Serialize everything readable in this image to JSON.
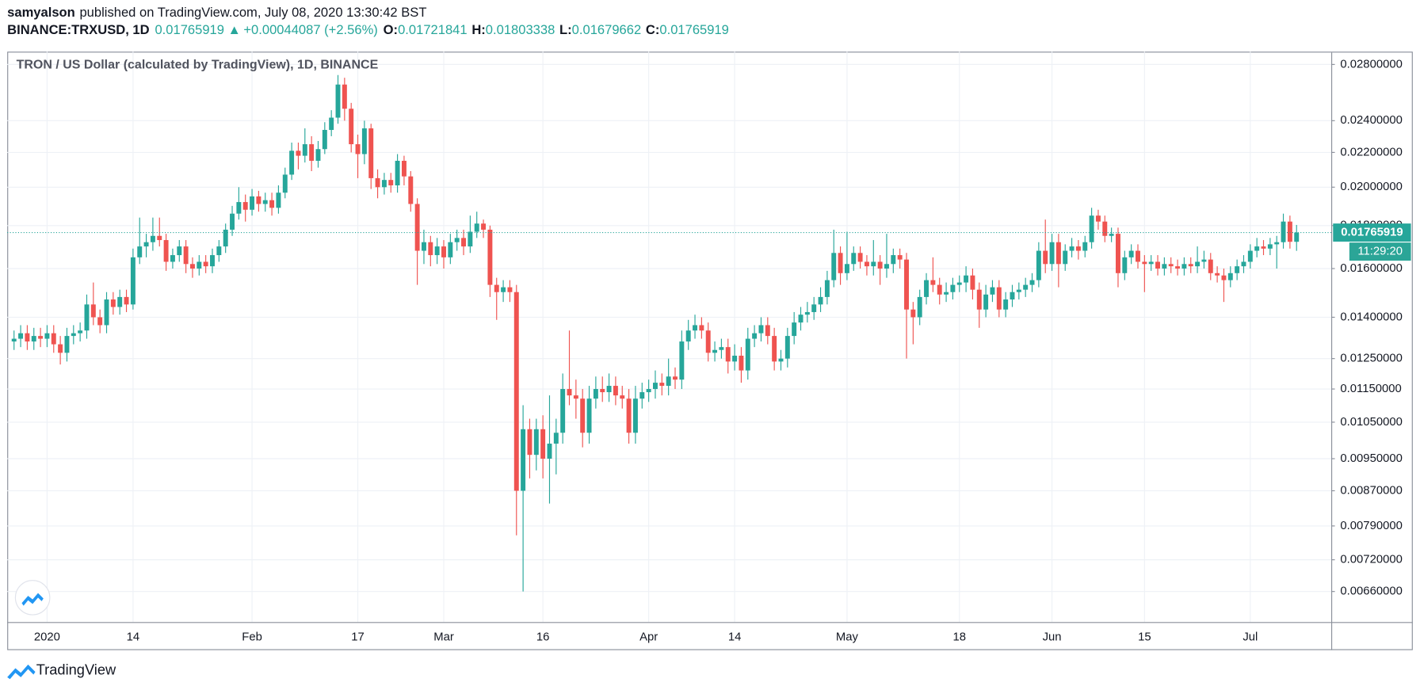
{
  "header": {
    "author": "samyalson",
    "published": "published on TradingView.com, July 08, 2020 13:30:42 BST",
    "symbol": "BINANCE:TRXUSD, 1D",
    "change": "+0.00044087 (+2.56%)",
    "ohlc_labels": [
      "O:",
      "H:",
      "L:",
      "C:"
    ],
    "brand": "TradingView"
  },
  "chart_data": {
    "type": "candlestick",
    "title": "TRON / US Dollar (calculated by TradingView), 1D, BINANCE",
    "countdown": "11:29:20",
    "log_scale": true,
    "grid": true,
    "up_color": "#26a69a",
    "down_color": "#ef5350",
    "categories": [
      null,
      null,
      null,
      null,
      null,
      "2020",
      null,
      null,
      null,
      null,
      null,
      null,
      null,
      null,
      null,
      null,
      null,
      null,
      "14",
      null,
      null,
      null,
      null,
      null,
      null,
      null,
      null,
      null,
      null,
      null,
      null,
      null,
      null,
      null,
      null,
      null,
      "Feb",
      null,
      null,
      null,
      null,
      null,
      null,
      null,
      null,
      null,
      null,
      null,
      null,
      null,
      null,
      null,
      "17",
      null,
      null,
      null,
      null,
      null,
      null,
      null,
      null,
      null,
      null,
      null,
      null,
      "Mar",
      null,
      null,
      null,
      null,
      null,
      null,
      null,
      null,
      null,
      null,
      null,
      null,
      null,
      null,
      "16",
      null,
      null,
      null,
      null,
      null,
      null,
      null,
      null,
      null,
      null,
      null,
      null,
      null,
      null,
      null,
      "Apr",
      null,
      null,
      null,
      null,
      null,
      null,
      null,
      null,
      null,
      null,
      null,
      null,
      "14",
      null,
      null,
      null,
      null,
      null,
      null,
      null,
      null,
      null,
      null,
      null,
      null,
      null,
      null,
      null,
      null,
      "May",
      null,
      null,
      null,
      null,
      null,
      null,
      null,
      null,
      null,
      null,
      null,
      null,
      null,
      null,
      null,
      null,
      "18",
      null,
      null,
      null,
      null,
      null,
      null,
      null,
      null,
      null,
      null,
      null,
      null,
      null,
      "Jun",
      null,
      null,
      null,
      null,
      null,
      null,
      null,
      null,
      null,
      null,
      null,
      null,
      null,
      "15",
      null,
      null,
      null,
      null,
      null,
      null,
      null,
      null,
      null,
      null,
      null,
      null,
      null,
      null,
      null,
      "Jul",
      null,
      null,
      null,
      null,
      null,
      null,
      null
    ],
    "open": [
      0.0131,
      0.0132,
      0.0134,
      0.0131,
      0.0133,
      0.0132,
      0.0134,
      0.013,
      0.0127,
      0.0133,
      0.0134,
      0.0135,
      0.0145,
      0.014,
      0.0137,
      0.0147,
      0.0144,
      0.0148,
      0.0145,
      0.0165,
      0.017,
      0.0172,
      0.0175,
      0.0173,
      0.0163,
      0.0166,
      0.017,
      0.0162,
      0.016,
      0.0163,
      0.0161,
      0.0166,
      0.017,
      0.0178,
      0.0186,
      0.0192,
      0.0188,
      0.0195,
      0.0191,
      0.0193,
      0.0189,
      0.0197,
      0.0207,
      0.0221,
      0.0218,
      0.0225,
      0.0215,
      0.0222,
      0.0234,
      0.0242,
      0.0265,
      0.0248,
      0.0225,
      0.0219,
      0.0235,
      0.0205,
      0.02,
      0.0204,
      0.0201,
      0.0215,
      0.0206,
      0.0191,
      0.0168,
      0.0172,
      0.0166,
      0.017,
      0.0165,
      0.0172,
      0.0174,
      0.017,
      0.0177,
      0.0181,
      0.0178,
      0.0153,
      0.015,
      0.0152,
      0.015,
      0.0087,
      0.0103,
      0.0096,
      0.0103,
      0.0095,
      0.0099,
      0.0102,
      0.0115,
      0.0113,
      0.0112,
      0.0102,
      0.0112,
      0.0115,
      0.0114,
      0.0116,
      0.0113,
      0.0112,
      0.0102,
      0.0112,
      0.0114,
      0.0115,
      0.0117,
      0.0116,
      0.0119,
      0.0118,
      0.0131,
      0.0135,
      0.0137,
      0.0135,
      0.0127,
      0.0128,
      0.0129,
      0.0124,
      0.0126,
      0.0121,
      0.0132,
      0.0134,
      0.0137,
      0.0133,
      0.0124,
      0.0125,
      0.0133,
      0.0138,
      0.0141,
      0.0142,
      0.0145,
      0.0148,
      0.0155,
      0.0167,
      0.0158,
      0.0162,
      0.0167,
      0.0163,
      0.0161,
      0.0163,
      0.016,
      0.0162,
      0.0166,
      0.0164,
      0.0143,
      0.014,
      0.0148,
      0.0155,
      0.0153,
      0.0149,
      0.015,
      0.0153,
      0.0154,
      0.0157,
      0.0151,
      0.0143,
      0.0149,
      0.0152,
      0.0143,
      0.0147,
      0.015,
      0.0151,
      0.0153,
      0.0155,
      0.0168,
      0.0162,
      0.0172,
      0.0162,
      0.0168,
      0.017,
      0.0168,
      0.0172,
      0.0185,
      0.0182,
      0.0175,
      0.0176,
      0.0158,
      0.0165,
      0.0168,
      0.0163,
      0.0162,
      0.0163,
      0.016,
      0.0162,
      0.0161,
      0.016,
      0.0162,
      0.0161,
      0.0163,
      0.0164,
      0.0158,
      0.0157,
      0.0155,
      0.0158,
      0.0161,
      0.0163,
      0.0168,
      0.017,
      0.0169,
      0.0171,
      0.0172,
      0.0182,
      0.01721841
    ],
    "high": [
      0.0135,
      0.0137,
      0.0137,
      0.0136,
      0.0136,
      0.0137,
      0.0137,
      0.0133,
      0.0136,
      0.0137,
      0.0138,
      0.0149,
      0.0154,
      0.0143,
      0.015,
      0.015,
      0.0151,
      0.0151,
      0.0169,
      0.0184,
      0.0176,
      0.0184,
      0.0184,
      0.0176,
      0.0169,
      0.0173,
      0.0173,
      0.0165,
      0.0166,
      0.0166,
      0.0169,
      0.0173,
      0.0181,
      0.019,
      0.02,
      0.0196,
      0.0199,
      0.0198,
      0.0197,
      0.0197,
      0.0201,
      0.0211,
      0.0226,
      0.0226,
      0.0235,
      0.023,
      0.0227,
      0.0239,
      0.0247,
      0.0272,
      0.027,
      0.0252,
      0.0231,
      0.024,
      0.0238,
      0.021,
      0.0208,
      0.0208,
      0.0219,
      0.0218,
      0.0209,
      0.0194,
      0.0178,
      0.0175,
      0.0174,
      0.0173,
      0.0176,
      0.0178,
      0.0178,
      0.0185,
      0.0187,
      0.0183,
      0.018,
      0.0156,
      0.0155,
      0.0155,
      0.0153,
      0.011,
      0.0106,
      0.0106,
      0.0107,
      0.0113,
      0.0106,
      0.012,
      0.0135,
      0.0118,
      0.0115,
      0.0116,
      0.0119,
      0.0119,
      0.012,
      0.0119,
      0.0116,
      0.0115,
      0.0116,
      0.0117,
      0.0118,
      0.0121,
      0.012,
      0.0125,
      0.0122,
      0.0135,
      0.0139,
      0.0141,
      0.014,
      0.0138,
      0.0131,
      0.0132,
      0.0132,
      0.013,
      0.0129,
      0.0136,
      0.0137,
      0.014,
      0.014,
      0.0136,
      0.0128,
      0.0136,
      0.0142,
      0.0144,
      0.0146,
      0.0148,
      0.0152,
      0.0159,
      0.0178,
      0.017,
      0.0177,
      0.017,
      0.017,
      0.0166,
      0.0173,
      0.0166,
      0.0176,
      0.0169,
      0.0169,
      0.0167,
      0.0146,
      0.0151,
      0.0158,
      0.0165,
      0.0156,
      0.0154,
      0.0156,
      0.0157,
      0.0161,
      0.016,
      0.0154,
      0.0153,
      0.0155,
      0.0155,
      0.015,
      0.0153,
      0.0154,
      0.0156,
      0.0158,
      0.0172,
      0.0183,
      0.0176,
      0.0176,
      0.0171,
      0.0174,
      0.0173,
      0.0175,
      0.0189,
      0.0188,
      0.0185,
      0.0179,
      0.0179,
      0.0168,
      0.0171,
      0.0171,
      0.0166,
      0.0166,
      0.0166,
      0.0165,
      0.0165,
      0.0164,
      0.0165,
      0.0165,
      0.017,
      0.0168,
      0.0167,
      0.0161,
      0.016,
      0.0161,
      0.0164,
      0.0166,
      0.0171,
      0.0174,
      0.0173,
      0.0174,
      0.0175,
      0.0186,
      0.0185,
      0.01803338
    ],
    "low": [
      0.0128,
      0.0129,
      0.0128,
      0.0128,
      0.0129,
      0.0129,
      0.0127,
      0.0123,
      0.0124,
      0.013,
      0.0131,
      0.0132,
      0.0137,
      0.0134,
      0.0134,
      0.0141,
      0.0141,
      0.0142,
      0.0143,
      0.0162,
      0.0165,
      0.0168,
      0.017,
      0.0159,
      0.016,
      0.0163,
      0.0158,
      0.0156,
      0.0157,
      0.0158,
      0.0158,
      0.0163,
      0.0167,
      0.0175,
      0.0183,
      0.0182,
      0.0185,
      0.0187,
      0.0187,
      0.0185,
      0.0186,
      0.0194,
      0.0204,
      0.021,
      0.0214,
      0.0209,
      0.0211,
      0.0219,
      0.023,
      0.0238,
      0.024,
      0.022,
      0.0205,
      0.0213,
      0.0199,
      0.0194,
      0.0196,
      0.0197,
      0.0197,
      0.0201,
      0.0187,
      0.0153,
      0.0162,
      0.0161,
      0.0162,
      0.016,
      0.0162,
      0.0168,
      0.0166,
      0.0167,
      0.0174,
      0.0174,
      0.0148,
      0.0139,
      0.0146,
      0.0146,
      0.0077,
      0.0066,
      0.009,
      0.0092,
      0.009,
      0.0084,
      0.0091,
      0.0099,
      0.011,
      0.0106,
      0.0098,
      0.0099,
      0.0109,
      0.0111,
      0.0111,
      0.011,
      0.0109,
      0.0099,
      0.0099,
      0.0109,
      0.0111,
      0.0112,
      0.0113,
      0.0113,
      0.0115,
      0.0115,
      0.0128,
      0.0132,
      0.0132,
      0.0124,
      0.0124,
      0.0125,
      0.012,
      0.0121,
      0.0117,
      0.0118,
      0.0129,
      0.0131,
      0.013,
      0.0121,
      0.0121,
      0.0122,
      0.013,
      0.0135,
      0.0138,
      0.0139,
      0.0142,
      0.0145,
      0.0152,
      0.0153,
      0.0155,
      0.0159,
      0.016,
      0.0157,
      0.0157,
      0.0153,
      0.0156,
      0.0158,
      0.016,
      0.0125,
      0.013,
      0.0137,
      0.0145,
      0.015,
      0.0145,
      0.0146,
      0.0147,
      0.015,
      0.015,
      0.0147,
      0.0136,
      0.014,
      0.0146,
      0.014,
      0.014,
      0.0144,
      0.0147,
      0.0148,
      0.015,
      0.0152,
      0.0158,
      0.0159,
      0.0152,
      0.0159,
      0.0165,
      0.0164,
      0.0165,
      0.0169,
      0.0178,
      0.0172,
      0.0172,
      0.0152,
      0.0155,
      0.0162,
      0.016,
      0.015,
      0.0159,
      0.0157,
      0.0157,
      0.0158,
      0.0157,
      0.0157,
      0.0158,
      0.0158,
      0.016,
      0.0155,
      0.0154,
      0.0146,
      0.0152,
      0.0155,
      0.0158,
      0.016,
      0.0165,
      0.0166,
      0.0166,
      0.016,
      0.0169,
      0.0169,
      0.01679662
    ],
    "close": [
      0.0132,
      0.0134,
      0.0131,
      0.0133,
      0.0132,
      0.0134,
      0.013,
      0.0127,
      0.0133,
      0.0134,
      0.0135,
      0.0145,
      0.014,
      0.0137,
      0.0147,
      0.0144,
      0.0148,
      0.0145,
      0.0165,
      0.017,
      0.0172,
      0.0175,
      0.0173,
      0.0163,
      0.0166,
      0.017,
      0.0162,
      0.016,
      0.0163,
      0.0161,
      0.0166,
      0.017,
      0.0178,
      0.0186,
      0.0192,
      0.0188,
      0.0195,
      0.0191,
      0.0193,
      0.0189,
      0.0197,
      0.0207,
      0.0221,
      0.0218,
      0.0225,
      0.0215,
      0.0222,
      0.0234,
      0.0242,
      0.0265,
      0.0248,
      0.0225,
      0.0219,
      0.0235,
      0.0205,
      0.02,
      0.0204,
      0.0201,
      0.0215,
      0.0206,
      0.0191,
      0.0168,
      0.0172,
      0.0166,
      0.017,
      0.0165,
      0.0172,
      0.0174,
      0.017,
      0.0177,
      0.0181,
      0.0178,
      0.0153,
      0.015,
      0.0152,
      0.015,
      0.0087,
      0.0103,
      0.0096,
      0.0103,
      0.0095,
      0.0099,
      0.0102,
      0.0115,
      0.0113,
      0.0112,
      0.0102,
      0.0112,
      0.0115,
      0.0114,
      0.0116,
      0.0113,
      0.0112,
      0.0102,
      0.0112,
      0.0114,
      0.0115,
      0.0117,
      0.0116,
      0.0119,
      0.0118,
      0.0131,
      0.0135,
      0.0137,
      0.0135,
      0.0127,
      0.0128,
      0.0129,
      0.0124,
      0.0126,
      0.0121,
      0.0132,
      0.0134,
      0.0137,
      0.0133,
      0.0124,
      0.0125,
      0.0133,
      0.0138,
      0.0141,
      0.0142,
      0.0145,
      0.0148,
      0.0155,
      0.0167,
      0.0158,
      0.0162,
      0.0167,
      0.0163,
      0.0161,
      0.0163,
      0.016,
      0.0162,
      0.0166,
      0.0164,
      0.0143,
      0.014,
      0.0148,
      0.0155,
      0.0153,
      0.0149,
      0.015,
      0.0153,
      0.0154,
      0.0157,
      0.0151,
      0.0143,
      0.0149,
      0.0152,
      0.0143,
      0.0147,
      0.015,
      0.0151,
      0.0153,
      0.0155,
      0.0168,
      0.0162,
      0.0172,
      0.0162,
      0.0168,
      0.017,
      0.0168,
      0.0172,
      0.0185,
      0.0182,
      0.0175,
      0.0176,
      0.0158,
      0.0165,
      0.0168,
      0.0163,
      0.0162,
      0.0163,
      0.016,
      0.0162,
      0.0161,
      0.016,
      0.0162,
      0.0161,
      0.0163,
      0.0164,
      0.0158,
      0.0157,
      0.0155,
      0.0158,
      0.0161,
      0.0163,
      0.0168,
      0.017,
      0.0169,
      0.0171,
      0.0172,
      0.0182,
      0.01721841,
      0.01765919
    ],
    "ylim": [
      0.00607,
      0.029
    ],
    "yticks": [
      {
        "value": 0.028,
        "label": "0.02800000"
      },
      {
        "value": 0.024,
        "label": "0.02400000"
      },
      {
        "value": 0.022,
        "label": "0.02200000"
      },
      {
        "value": 0.02,
        "label": "0.02000000"
      },
      {
        "value": 0.018,
        "label": "0.01800000"
      },
      {
        "value": 0.016,
        "label": "0.01600000"
      },
      {
        "value": 0.014,
        "label": "0.01400000"
      },
      {
        "value": 0.0125,
        "label": "0.01250000"
      },
      {
        "value": 0.0115,
        "label": "0.01150000"
      },
      {
        "value": 0.0105,
        "label": "0.01050000"
      },
      {
        "value": 0.0095,
        "label": "0.00950000"
      },
      {
        "value": 0.0087,
        "label": "0.00870000"
      },
      {
        "value": 0.0079,
        "label": "0.00790000"
      },
      {
        "value": 0.0072,
        "label": "0.00720000"
      },
      {
        "value": 0.0066,
        "label": "0.00660000"
      }
    ]
  }
}
